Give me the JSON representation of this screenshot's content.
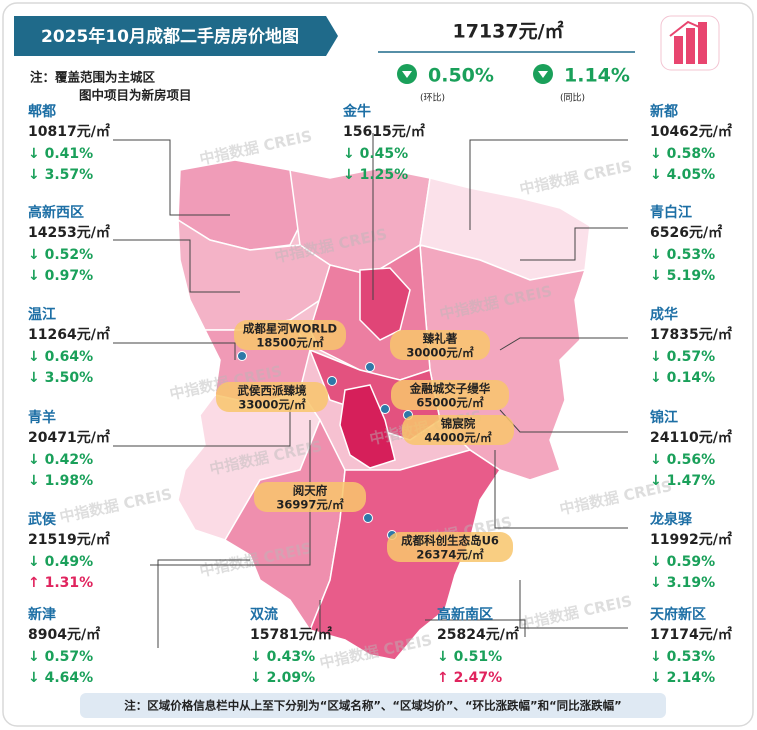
{
  "header": {
    "title": "2025年10月成都二手房房价地图",
    "notes": [
      "注：覆盖范围为主城区",
      "图中项目为新房项目"
    ]
  },
  "summary": {
    "price": "17137元/㎡",
    "mom": "0.50%",
    "mom_label": "(环比)",
    "yoy": "1.14%",
    "yoy_label": "(同比)",
    "color": "#1aa05a"
  },
  "watermark": "中指数据 CREIS",
  "districts": [
    {
      "name": "郫都",
      "price": "10817元/㎡",
      "mom": {
        "text": "↓ 0.41%",
        "color": "#1aa05a"
      },
      "yoy": {
        "text": "↓ 3.57%",
        "color": "#1aa05a"
      }
    },
    {
      "name": "高新西区",
      "price": "14253元/㎡",
      "mom": {
        "text": "↓ 0.52%",
        "color": "#1aa05a"
      },
      "yoy": {
        "text": "↓ 0.97%",
        "color": "#1aa05a"
      }
    },
    {
      "name": "温江",
      "price": "11264元/㎡",
      "mom": {
        "text": "↓ 0.64%",
        "color": "#1aa05a"
      },
      "yoy": {
        "text": "↓ 3.50%",
        "color": "#1aa05a"
      }
    },
    {
      "name": "青羊",
      "price": "20471元/㎡",
      "mom": {
        "text": "↓ 0.42%",
        "color": "#1aa05a"
      },
      "yoy": {
        "text": "↓ 1.98%",
        "color": "#1aa05a"
      }
    },
    {
      "name": "武侯",
      "price": "21519元/㎡",
      "mom": {
        "text": "↓ 0.49%",
        "color": "#1aa05a"
      },
      "yoy": {
        "text": "↑ 1.31%",
        "color": "#e0245e"
      }
    },
    {
      "name": "新津",
      "price": "8904元/㎡",
      "mom": {
        "text": "↓ 0.57%",
        "color": "#1aa05a"
      },
      "yoy": {
        "text": "↓ 4.64%",
        "color": "#1aa05a"
      }
    },
    {
      "name": "金牛",
      "price": "15615元/㎡",
      "mom": {
        "text": "↓ 0.45%",
        "color": "#1aa05a"
      },
      "yoy": {
        "text": "↓ 1.25%",
        "color": "#1aa05a"
      }
    },
    {
      "name": "双流",
      "price": "15781元/㎡",
      "mom": {
        "text": "↓ 0.43%",
        "color": "#1aa05a"
      },
      "yoy": {
        "text": "↓ 2.09%",
        "color": "#1aa05a"
      }
    },
    {
      "name": "高新南区",
      "price": "25824元/㎡",
      "mom": {
        "text": "↓ 0.51%",
        "color": "#1aa05a"
      },
      "yoy": {
        "text": "↑ 2.47%",
        "color": "#e0245e"
      }
    },
    {
      "name": "新都",
      "price": "10462元/㎡",
      "mom": {
        "text": "↓ 0.58%",
        "color": "#1aa05a"
      },
      "yoy": {
        "text": "↓ 4.05%",
        "color": "#1aa05a"
      }
    },
    {
      "name": "青白江",
      "price": "6526元/㎡",
      "mom": {
        "text": "↓ 0.53%",
        "color": "#1aa05a"
      },
      "yoy": {
        "text": "↓ 5.19%",
        "color": "#1aa05a"
      }
    },
    {
      "name": "成华",
      "price": "17835元/㎡",
      "mom": {
        "text": "↓ 0.57%",
        "color": "#1aa05a"
      },
      "yoy": {
        "text": "↓ 0.14%",
        "color": "#1aa05a"
      }
    },
    {
      "name": "锦江",
      "price": "24110元/㎡",
      "mom": {
        "text": "↓ 0.56%",
        "color": "#1aa05a"
      },
      "yoy": {
        "text": "↓ 1.47%",
        "color": "#1aa05a"
      }
    },
    {
      "name": "龙泉驿",
      "price": "11992元/㎡",
      "mom": {
        "text": "↓ 0.59%",
        "color": "#1aa05a"
      },
      "yoy": {
        "text": "↓ 3.19%",
        "color": "#1aa05a"
      }
    },
    {
      "name": "天府新区",
      "price": "17174元/㎡",
      "mom": {
        "text": "↓ 0.53%",
        "color": "#1aa05a"
      },
      "yoy": {
        "text": "↓ 2.14%",
        "color": "#1aa05a"
      }
    }
  ],
  "projects": [
    {
      "name": "成都星河WORLD",
      "price": "18500元/㎡"
    },
    {
      "name": "臻礼著",
      "price": "30000元/㎡"
    },
    {
      "name": "武侯西派臻境",
      "price": "33000元/㎡"
    },
    {
      "name": "金融城交子缦华",
      "price": "65000元/㎡"
    },
    {
      "name": "锦宸院",
      "price": "44000元/㎡"
    },
    {
      "name": "阅天府",
      "price": "36997元/㎡"
    },
    {
      "name": "成都科创生态岛U6",
      "price": "26374元/㎡"
    }
  ],
  "footer": "注：区域价格信息栏中从上至下分别为“区域名称”、“区域均价”、“环比涨跌幅”和“同比涨跌幅”"
}
